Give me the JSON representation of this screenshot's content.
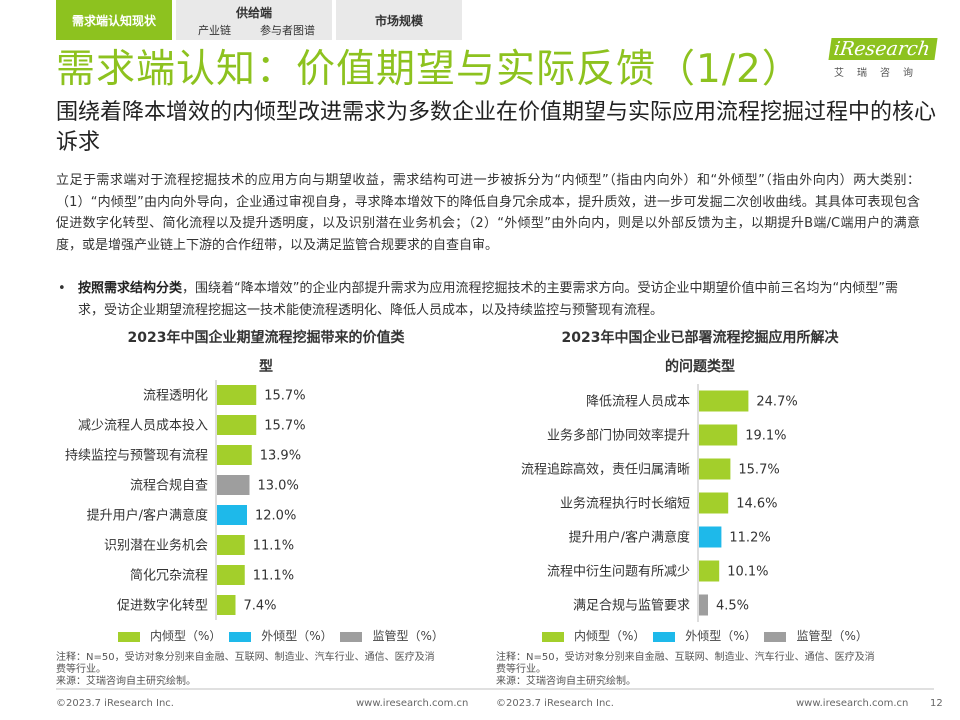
{
  "nav": {
    "tabs": [
      {
        "label": "需求端认知现状",
        "sub": []
      },
      {
        "label": "供给端",
        "sub": [
          "产业链",
          "参与者图谱"
        ]
      },
      {
        "label": "市场规模",
        "sub": []
      }
    ]
  },
  "title": "需求端认知：价值期望与实际反馈（1/2）",
  "logo": {
    "brand": "iResearch",
    "sub": "艾瑞咨询"
  },
  "subtitle": "围绕着降本增效的内倾型改进需求为多数企业在价值期望与实际应用流程挖掘过程中的核心诉求",
  "paragraph": "立足于需求端对于流程挖掘技术的应用方向与期望收益，需求结构可进一步被拆分为“内倾型”（指由内向外）和“外倾型”（指由外向内）两大类别：（1）“内倾型”由内向外导向，企业通过审视自身，寻求降本增效下的降低自身冗余成本，提升质效，进一步可发掘二次创收曲线。其具体可表现包含促进数字化转型、简化流程以及提升透明度，以及识别潜在业务机会；（2）“外倾型”由外向内，则是以外部反馈为主，以期提升B端/C端用户的满意度，或是增强产业链上下游的合作纽带，以及满足监管合规要求的自查自审。",
  "bullet": {
    "bold": "按照需求结构分类",
    "text": "，围绕着“降本增效”的企业内部提升需求为应用流程挖掘技术的主要需求方向。受访企业中期望价值中前三名均为“内倾型”需求，受访企业期望流程挖掘这一技术能使流程透明化、降低人员成本，以及持续监控与预警现有流程。"
  },
  "legend": [
    {
      "label": "内倾型（%）",
      "color": "#a3cf2b"
    },
    {
      "label": "外倾型（%）",
      "color": "#1eb9ea"
    },
    {
      "label": "监管型（%）",
      "color": "#9e9e9e"
    }
  ],
  "note_lines": [
    "注释：N=50，受访对象分别来自金融、互联网、制造业、汽车行业、通信、医疗及消",
    "费等行业。",
    "来源：艾瑞咨询自主研究绘制。"
  ],
  "footer": {
    "copyright": "©2023.7 iResearch Inc.",
    "url": "www.iresearch.com.cn",
    "page": "12"
  },
  "chart_data": [
    {
      "type": "bar",
      "orientation": "horizontal",
      "title_lines": [
        "2023年中国企业期望流程挖掘带来的价值类",
        "型"
      ],
      "categories": [
        "流程透明化",
        "减少流程人员成本投入",
        "持续监控与预警现有流程",
        "流程合规自查",
        "提升用户/客户满意度",
        "识别潜在业务机会",
        "简化冗杂流程",
        "促进数字化转型"
      ],
      "values": [
        15.7,
        15.7,
        13.9,
        13.0,
        12.0,
        11.1,
        11.1,
        7.4
      ],
      "types": [
        "内倾型",
        "内倾型",
        "内倾型",
        "监管型",
        "外倾型",
        "内倾型",
        "内倾型",
        "内倾型"
      ],
      "value_labels": [
        "15.7%",
        "15.7%",
        "13.9%",
        "13.0%",
        "12.0%",
        "11.1%",
        "11.1%",
        "7.4%"
      ]
    },
    {
      "type": "bar",
      "orientation": "horizontal",
      "title_lines": [
        "2023年中国企业已部署流程挖掘应用所解决",
        "的问题类型"
      ],
      "categories": [
        "降低流程人员成本",
        "业务多部门协同效率提升",
        "流程追踪高效，责任归属清晰",
        "业务流程执行时长缩短",
        "提升用户/客户满意度",
        "流程中衍生问题有所减少",
        "满足合规与监管要求"
      ],
      "values": [
        24.7,
        19.1,
        15.7,
        14.6,
        11.2,
        10.1,
        4.5
      ],
      "types": [
        "内倾型",
        "内倾型",
        "内倾型",
        "内倾型",
        "外倾型",
        "内倾型",
        "监管型"
      ],
      "value_labels": [
        "24.7%",
        "19.1%",
        "15.7%",
        "14.6%",
        "11.2%",
        "10.1%",
        "4.5%"
      ]
    }
  ]
}
